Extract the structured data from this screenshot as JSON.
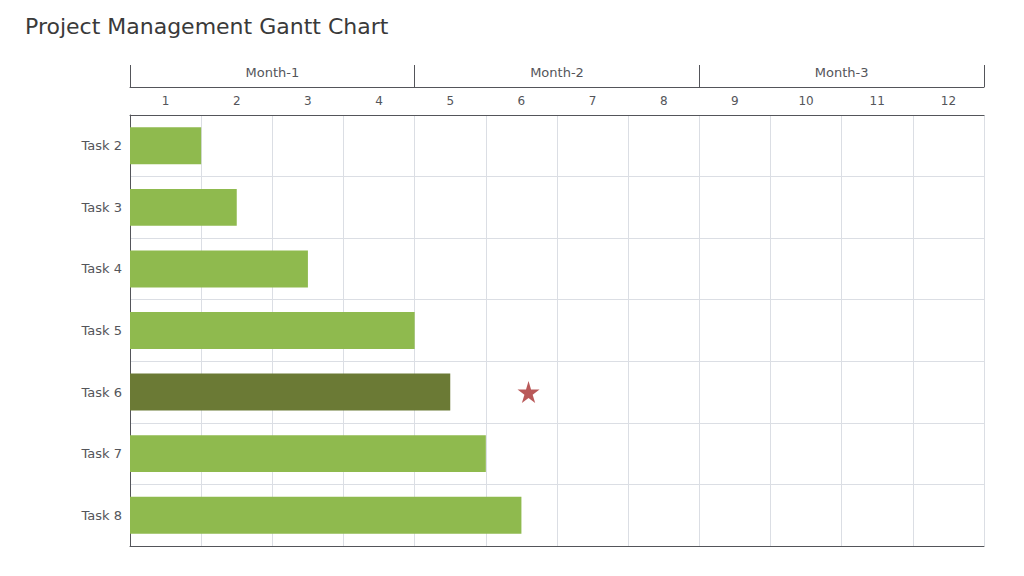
{
  "chart_data": {
    "type": "gantt",
    "title": "Project Management Gantt Chart",
    "orientation": "horizontal",
    "categories": [
      "Task 2",
      "Task 3",
      "Task 4",
      "Task 5",
      "Task 6",
      "Task 7",
      "Task 8"
    ],
    "starts": [
      0,
      0,
      0,
      0,
      0,
      0,
      0
    ],
    "ends": [
      1,
      1.5,
      2.5,
      4,
      4.5,
      5,
      5.5
    ],
    "colors": [
      "#8fba4e",
      "#8fba4e",
      "#8fba4e",
      "#8fba4e",
      "#6b7a35",
      "#8fba4e",
      "#8fba4e"
    ],
    "milestone": {
      "category": "Task 6",
      "x": 5.6,
      "color": "#a83030",
      "marker": "star"
    },
    "x_groups": [
      {
        "label": "Month-1",
        "start": 0,
        "end": 4
      },
      {
        "label": "Month-2",
        "start": 4,
        "end": 8
      },
      {
        "label": "Month-3",
        "start": 8,
        "end": 12
      }
    ],
    "xlim": [
      0,
      12
    ],
    "xticks": [
      {
        "value": 0.5,
        "label": "1"
      },
      {
        "value": 1.5,
        "label": "2"
      },
      {
        "value": 2.5,
        "label": "3"
      },
      {
        "value": 3.5,
        "label": "4"
      },
      {
        "value": 4.5,
        "label": "5"
      },
      {
        "value": 5.5,
        "label": "6"
      },
      {
        "value": 6.5,
        "label": "7"
      },
      {
        "value": 7.5,
        "label": "8"
      },
      {
        "value": 8.5,
        "label": "9"
      },
      {
        "value": 9.5,
        "label": "10"
      },
      {
        "value": 10.5,
        "label": "11"
      },
      {
        "value": 11.5,
        "label": "12"
      }
    ],
    "grid": true
  }
}
